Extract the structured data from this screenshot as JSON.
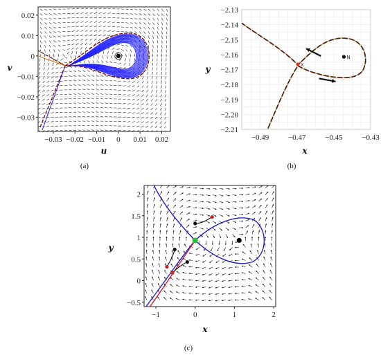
{
  "chart_data": [
    {
      "panel": "(a)",
      "type": "vector-field",
      "xlabel": "u",
      "ylabel": "v",
      "xlim": [
        -0.037,
        0.024
      ],
      "ylim": [
        -0.037,
        0.024
      ],
      "xticks": [
        -0.03,
        -0.02,
        -0.01,
        0,
        0.01,
        0.02
      ],
      "xticklabels": [
        "−0.03",
        "−0.02",
        "−0.01",
        "0",
        "0.01",
        "0.02"
      ],
      "yticks": [
        0.02,
        0.01,
        0,
        -0.01,
        -0.02,
        -0.03
      ],
      "yticklabels": [
        "0.02",
        "0.01",
        "0",
        "−0.01",
        "−0.02",
        "−0.03"
      ],
      "grid": true,
      "equilibria": [
        {
          "kind": "center",
          "x": 0,
          "y": 0
        },
        {
          "kind": "saddle",
          "x": -0.0245,
          "y": -0.0048
        }
      ],
      "orbit_colors": [
        "#2020ff",
        "#7a1010",
        "#e07000"
      ],
      "arrow_color": "#000000"
    },
    {
      "panel": "(b)",
      "type": "line",
      "xlabel": "x",
      "ylabel": "y",
      "xlim": [
        -0.5,
        -0.43
      ],
      "ylim": [
        -2.21,
        -2.13
      ],
      "xticks": [
        -0.49,
        -0.47,
        -0.45,
        -0.43
      ],
      "xticklabels": [
        "−0.49",
        "−0.47",
        "−0.45",
        "−0.43"
      ],
      "yticks": [
        -2.13,
        -2.14,
        -2.15,
        -2.16,
        -2.17,
        -2.18,
        -2.19,
        -2.2,
        -2.21
      ],
      "yticklabels": [
        "−2.13",
        "−2.14",
        "−2.15",
        "−2.16",
        "−2.17",
        "−2.18",
        "−2.19",
        "−2.20",
        "−2.21"
      ],
      "grid": true,
      "series_colors": [
        "#5a1010",
        "#6b7a20"
      ],
      "points": [
        {
          "label": "X",
          "x": -0.4695,
          "y": -2.1665,
          "color": "#e03020"
        },
        {
          "label": "N",
          "x": -0.4445,
          "y": -2.1615,
          "color": "#111111"
        }
      ]
    },
    {
      "panel": "(c)",
      "type": "vector-field",
      "xlabel": "x",
      "ylabel": "y",
      "xlim": [
        -1.3,
        2.05
      ],
      "ylim": [
        -0.6,
        2.2
      ],
      "xticks": [
        -1,
        0,
        1,
        2
      ],
      "xticklabels": [
        "−1",
        "0",
        "1",
        "2"
      ],
      "yticks": [
        2,
        1.5,
        1,
        0.5,
        0,
        -0.5
      ],
      "yticklabels": [
        "2",
        "1.5",
        "1",
        "0.5",
        "0",
        "−0.5"
      ],
      "grid": false,
      "equilibria": [
        {
          "kind": "saddle",
          "x": 0,
          "y": 0.93,
          "color": "#30c030"
        },
        {
          "kind": "center",
          "x": 1.12,
          "y": 0.93,
          "color": "#000000"
        }
      ],
      "trajectory_starts": [
        {
          "x": 0,
          "y": 1.32
        },
        {
          "x": -0.52,
          "y": 0.72
        },
        {
          "x": -0.2,
          "y": 0.43
        }
      ],
      "trajectory_ends": [
        {
          "x": 0.43,
          "y": 1.47
        },
        {
          "x": -0.72,
          "y": 0.32
        },
        {
          "x": -0.58,
          "y": 0.18
        }
      ],
      "separatrix_color": "#2020d0",
      "unstable_color": "#d02020"
    }
  ],
  "captions": {
    "a": "(a)",
    "b": "(b)",
    "c": "(c)"
  }
}
